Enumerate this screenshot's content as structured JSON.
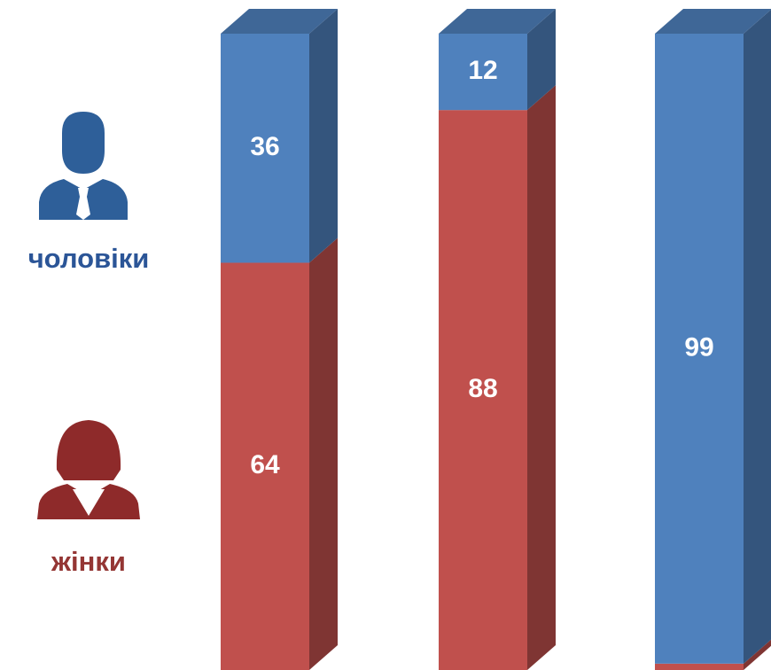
{
  "chart_data": {
    "type": "bar",
    "stacked": true,
    "categories": [
      null,
      null,
      null
    ],
    "series": [
      {
        "name": "жінки",
        "color": "#c0504d",
        "values": [
          64,
          88,
          1
        ]
      },
      {
        "name": "чоловіки",
        "color": "#4f81bd",
        "values": [
          36,
          12,
          99
        ]
      }
    ]
  }
}
